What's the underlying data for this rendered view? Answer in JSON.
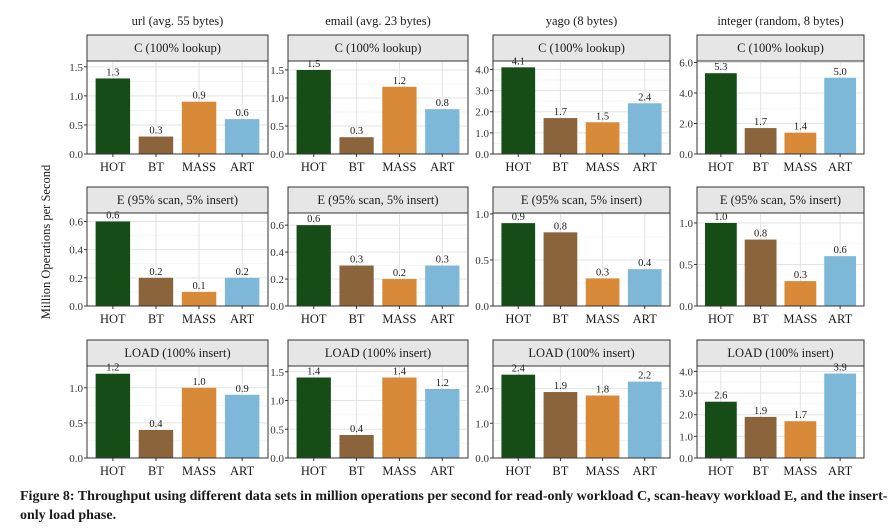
{
  "figure": {
    "caption": "Figure 8: Throughput using different data sets in million operations per second for read-only workload C, scan-heavy workload E, and the insert-only load phase."
  },
  "colors": {
    "HOT": "#164d16",
    "BT": "#8b643c",
    "MASS": "#d98a38",
    "ART": "#7eb8d9"
  },
  "chart_data": {
    "type": "bar",
    "ylabel": "Million Operations per Second",
    "categories": [
      "HOT",
      "BT",
      "MASS",
      "ART"
    ],
    "columns": [
      "url (avg. 55 bytes)",
      "email (avg. 23 bytes)",
      "yago (8 bytes)",
      "integer (random, 8 bytes)"
    ],
    "rows": [
      "C (100% lookup)",
      "E (95% scan, 5% insert)",
      "LOAD (100% insert)"
    ],
    "panels": [
      [
        {
          "values": [
            1.3,
            0.3,
            0.9,
            0.6
          ],
          "labels": [
            "1.3",
            "0.3",
            "0.9",
            "0.6"
          ],
          "ylim": [
            0,
            1.6
          ],
          "ticks": [
            "0.0",
            "0.5",
            "1.0",
            "1.5"
          ]
        },
        {
          "values": [
            1.5,
            0.3,
            1.2,
            0.8
          ],
          "labels": [
            "1.5",
            "0.3",
            "1.2",
            "0.8"
          ],
          "ylim": [
            0,
            1.66
          ],
          "ticks": [
            "0.0",
            "0.5",
            "1.0",
            "1.5"
          ]
        },
        {
          "values": [
            4.1,
            1.7,
            1.5,
            2.4
          ],
          "labels": [
            "4.1",
            "1.7",
            "1.5",
            "2.4"
          ],
          "ylim": [
            0,
            4.4
          ],
          "ticks": [
            "0.0",
            "1.0",
            "2.0",
            "3.0",
            "4.0"
          ]
        },
        {
          "values": [
            5.3,
            1.7,
            1.4,
            5.0
          ],
          "labels": [
            "5.3",
            "1.7",
            "1.4",
            "5.0"
          ],
          "ylim": [
            0,
            6.1
          ],
          "ticks": [
            "0.0",
            "2.0",
            "4.0",
            "6.0"
          ]
        }
      ],
      [
        {
          "values": [
            0.6,
            0.2,
            0.1,
            0.2
          ],
          "labels": [
            "0.6",
            "0.2",
            "0.1",
            "0.2"
          ],
          "ylim": [
            0,
            0.66
          ],
          "ticks": [
            "0.0",
            "0.2",
            "0.4",
            "0.6"
          ]
        },
        {
          "values": [
            0.6,
            0.3,
            0.2,
            0.3
          ],
          "labels": [
            "0.6",
            "0.3",
            "0.2",
            "0.3"
          ],
          "ylim": [
            0,
            0.69
          ],
          "ticks": [
            "0.0",
            "0.2",
            "0.4",
            "0.6"
          ]
        },
        {
          "values": [
            0.9,
            0.8,
            0.3,
            0.4
          ],
          "labels": [
            "0.9",
            "0.8",
            "0.3",
            "0.4"
          ],
          "ylim": [
            0,
            1.01
          ],
          "ticks": [
            "0.0",
            "0.5",
            "1.0"
          ]
        },
        {
          "values": [
            1.0,
            0.8,
            0.3,
            0.6
          ],
          "labels": [
            "1.0",
            "0.8",
            "0.3",
            "0.6"
          ],
          "ylim": [
            0,
            1.12
          ],
          "ticks": [
            "0.0",
            "0.5",
            "1.0"
          ]
        }
      ],
      [
        {
          "values": [
            1.2,
            0.4,
            1.0,
            0.9
          ],
          "labels": [
            "1.2",
            "0.4",
            "1.0",
            "0.9"
          ],
          "ylim": [
            0,
            1.31
          ],
          "ticks": [
            "0.0",
            "0.5",
            "1.0"
          ]
        },
        {
          "values": [
            1.4,
            0.4,
            1.4,
            1.2
          ],
          "labels": [
            "1.4",
            "0.4",
            "1.4",
            "1.2"
          ],
          "ylim": [
            0,
            1.6
          ],
          "ticks": [
            "0.0",
            "0.5",
            "1.0",
            "1.5"
          ]
        },
        {
          "values": [
            2.4,
            1.9,
            1.8,
            2.2
          ],
          "labels": [
            "2.4",
            "1.9",
            "1.8",
            "2.2"
          ],
          "ylim": [
            0,
            2.65
          ],
          "ticks": [
            "0.0",
            "1.0",
            "2.0"
          ]
        },
        {
          "values": [
            2.6,
            1.9,
            1.7,
            3.9
          ],
          "labels": [
            "2.6",
            "1.9",
            "1.7",
            "3.9"
          ],
          "ylim": [
            0,
            4.25
          ],
          "ticks": [
            "0.0",
            "1.0",
            "2.0",
            "3.0",
            "4.0"
          ]
        }
      ]
    ]
  }
}
